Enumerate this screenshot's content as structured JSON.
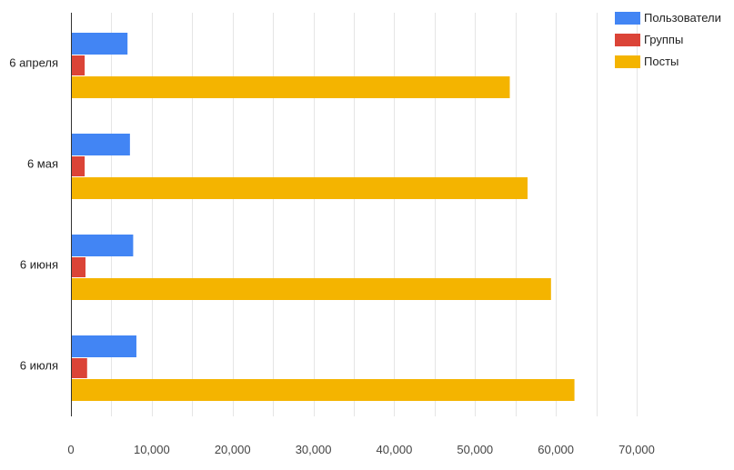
{
  "chart_data": {
    "type": "bar",
    "orientation": "horizontal",
    "title": "",
    "xlabel": "",
    "ylabel": "",
    "categories": [
      "6 апреля",
      "6 мая",
      "6 июня",
      "6 июля"
    ],
    "series": [
      {
        "name": "Пользователи",
        "color": "#4285f4",
        "values": [
          7000,
          7300,
          7700,
          8100
        ]
      },
      {
        "name": "Группы",
        "color": "#db4437",
        "values": [
          1700,
          1700,
          1800,
          2000
        ]
      },
      {
        "name": "Посты",
        "color": "#f4b400",
        "values": [
          54300,
          56500,
          59400,
          62300
        ]
      }
    ],
    "xlim": [
      0,
      70000
    ],
    "x_ticks": [
      "0",
      "10,000",
      "20,000",
      "30,000",
      "40,000",
      "50,000",
      "60,000",
      "70,000"
    ],
    "grid": true,
    "legend_position": "top-right"
  }
}
